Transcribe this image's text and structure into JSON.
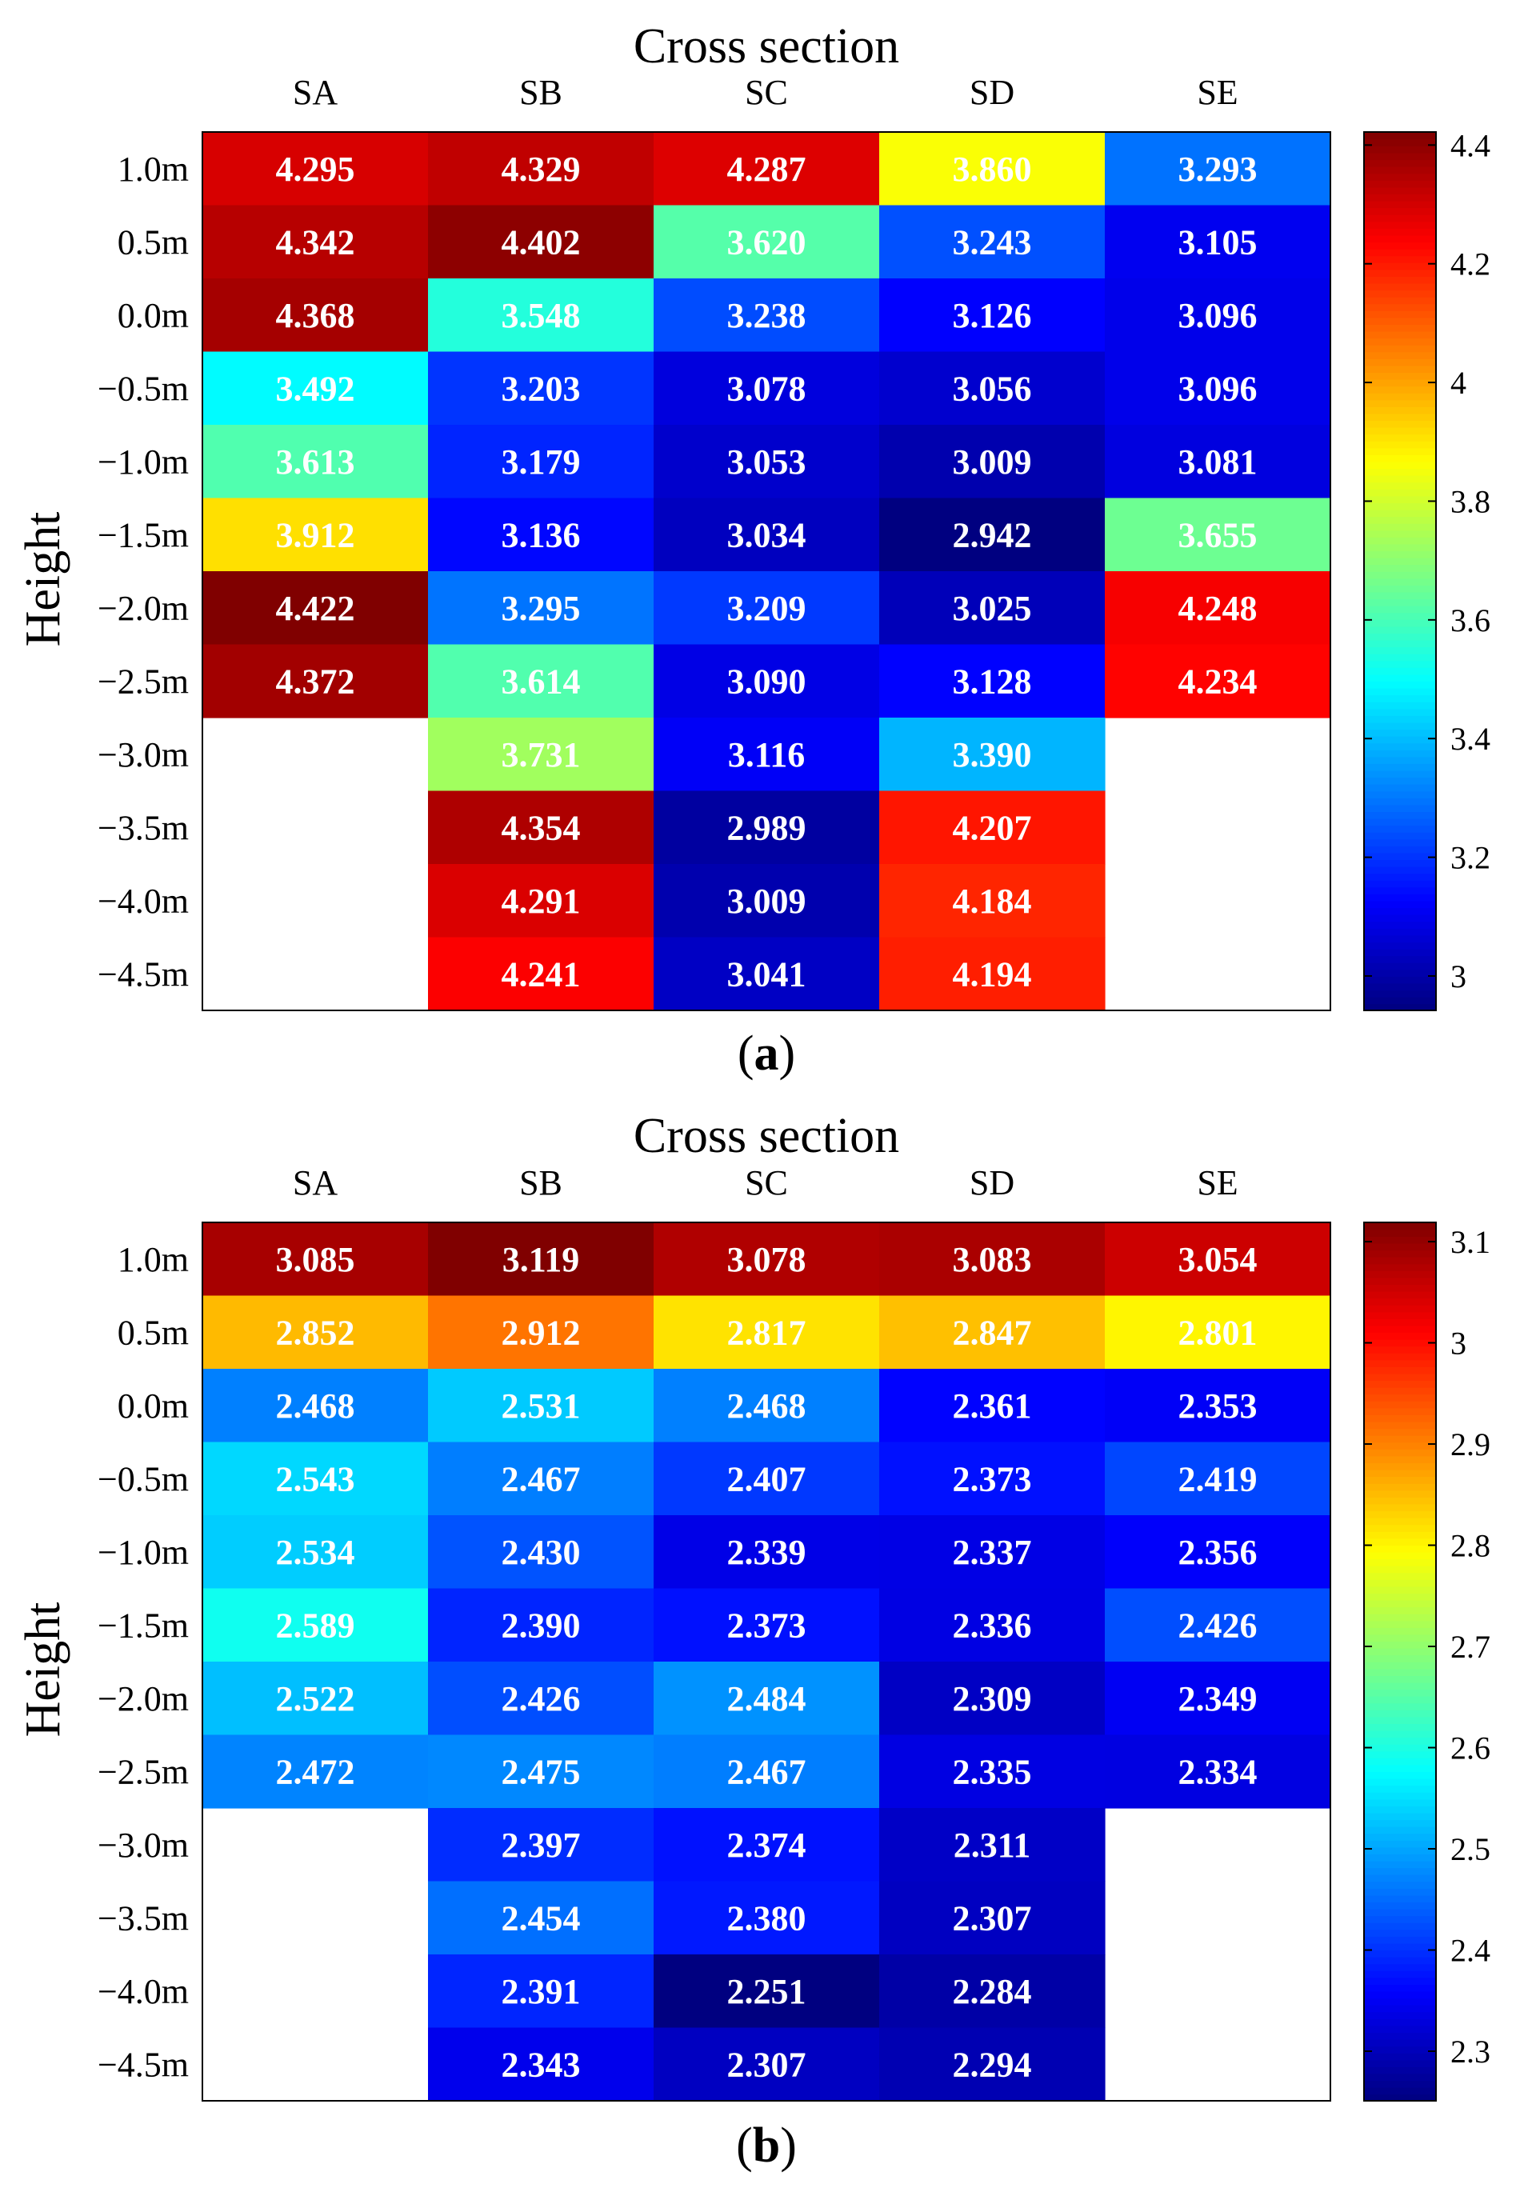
{
  "chart_data": [
    {
      "type": "heatmap",
      "title": "Cross section",
      "ylabel": "Height",
      "caption": "(a)",
      "columns": [
        "SA",
        "SB",
        "SC",
        "SD",
        "SE"
      ],
      "rows": [
        "1.0m",
        "0.5m",
        "0.0m",
        "−0.5m",
        "−1.0m",
        "−1.5m",
        "−2.0m",
        "−2.5m",
        "−3.0m",
        "−3.5m",
        "−4.0m",
        "−4.5m"
      ],
      "values": [
        [
          4.295,
          4.329,
          4.287,
          3.86,
          3.293
        ],
        [
          4.342,
          4.402,
          3.62,
          3.243,
          3.105
        ],
        [
          4.368,
          3.548,
          3.238,
          3.126,
          3.096
        ],
        [
          3.492,
          3.203,
          3.078,
          3.056,
          3.096
        ],
        [
          3.613,
          3.179,
          3.053,
          3.009,
          3.081
        ],
        [
          3.912,
          3.136,
          3.034,
          2.942,
          3.655
        ],
        [
          4.422,
          3.295,
          3.209,
          3.025,
          4.248
        ],
        [
          4.372,
          3.614,
          3.09,
          3.128,
          4.234
        ],
        [
          null,
          3.731,
          3.116,
          3.39,
          null
        ],
        [
          null,
          4.354,
          2.989,
          4.207,
          null
        ],
        [
          null,
          4.291,
          3.009,
          4.184,
          null
        ],
        [
          null,
          4.241,
          3.041,
          4.194,
          null
        ]
      ],
      "labels": [
        [
          "4.295",
          "4.329",
          "4.287",
          "3.860",
          "3.293"
        ],
        [
          "4.342",
          "4.402",
          "3.620",
          "3.243",
          "3.105"
        ],
        [
          "4.368",
          "3.548",
          "3.238",
          "3.126",
          "3.096"
        ],
        [
          "3.492",
          "3.203",
          "3.078",
          "3.056",
          "3.096"
        ],
        [
          "3.613",
          "3.179",
          "3.053",
          "3.009",
          "3.081"
        ],
        [
          "3.912",
          "3.136",
          "3.034",
          "2.942",
          "3.655"
        ],
        [
          "4.422",
          "3.295",
          "3.209",
          "3.025",
          "4.248"
        ],
        [
          "4.372",
          "3.614",
          "3.090",
          "3.128",
          "4.234"
        ],
        [
          "",
          "3.731",
          "3.116",
          "3.390",
          ""
        ],
        [
          "",
          "4.354",
          "2.989",
          "4.207",
          ""
        ],
        [
          "",
          "4.291",
          "3.009",
          "4.184",
          ""
        ],
        [
          "",
          "4.241",
          "3.041",
          "4.194",
          ""
        ]
      ],
      "colorbar": {
        "range": [
          2.942,
          4.422
        ],
        "ticks": [
          3,
          3.2,
          3.4,
          3.6,
          3.8,
          4,
          4.2,
          4.4
        ],
        "tick_labels": [
          "3",
          "3.2",
          "3.4",
          "3.6",
          "3.8",
          "4",
          "4.2",
          "4.4"
        ],
        "colormap": "jet"
      }
    },
    {
      "type": "heatmap",
      "title": "Cross section",
      "ylabel": "Height",
      "caption": "(b)",
      "columns": [
        "SA",
        "SB",
        "SC",
        "SD",
        "SE"
      ],
      "rows": [
        "1.0m",
        "0.5m",
        "0.0m",
        "−0.5m",
        "−1.0m",
        "−1.5m",
        "−2.0m",
        "−2.5m",
        "−3.0m",
        "−3.5m",
        "−4.0m",
        "−4.5m"
      ],
      "values": [
        [
          3.085,
          3.119,
          3.078,
          3.083,
          3.054
        ],
        [
          2.852,
          2.912,
          2.817,
          2.847,
          2.801
        ],
        [
          2.468,
          2.531,
          2.468,
          2.361,
          2.353
        ],
        [
          2.543,
          2.467,
          2.407,
          2.373,
          2.419
        ],
        [
          2.534,
          2.43,
          2.339,
          2.337,
          2.356
        ],
        [
          2.589,
          2.39,
          2.373,
          2.336,
          2.426
        ],
        [
          2.522,
          2.426,
          2.484,
          2.309,
          2.349
        ],
        [
          2.472,
          2.475,
          2.467,
          2.335,
          2.334
        ],
        [
          null,
          2.397,
          2.374,
          2.311,
          null
        ],
        [
          null,
          2.454,
          2.38,
          2.307,
          null
        ],
        [
          null,
          2.391,
          2.251,
          2.284,
          null
        ],
        [
          null,
          2.343,
          2.307,
          2.294,
          null
        ]
      ],
      "labels": [
        [
          "3.085",
          "3.119",
          "3.078",
          "3.083",
          "3.054"
        ],
        [
          "2.852",
          "2.912",
          "2.817",
          "2.847",
          "2.801"
        ],
        [
          "2.468",
          "2.531",
          "2.468",
          "2.361",
          "2.353"
        ],
        [
          "2.543",
          "2.467",
          "2.407",
          "2.373",
          "2.419"
        ],
        [
          "2.534",
          "2.430",
          "2.339",
          "2.337",
          "2.356"
        ],
        [
          "2.589",
          "2.390",
          "2.373",
          "2.336",
          "2.426"
        ],
        [
          "2.522",
          "2.426",
          "2.484",
          "2.309",
          "2.349"
        ],
        [
          "2.472",
          "2.475",
          "2.467",
          "2.335",
          "2.334"
        ],
        [
          "",
          "2.397",
          "2.374",
          "2.311",
          ""
        ],
        [
          "",
          "2.454",
          "2.380",
          "2.307",
          ""
        ],
        [
          "",
          "2.391",
          "2.251",
          "2.284",
          ""
        ],
        [
          "",
          "2.343",
          "2.307",
          "2.294",
          ""
        ]
      ],
      "colorbar": {
        "range": [
          2.251,
          3.119
        ],
        "ticks": [
          2.3,
          2.4,
          2.5,
          2.6,
          2.7,
          2.8,
          2.9,
          3,
          3.1
        ],
        "tick_labels": [
          "2.3",
          "2.4",
          "2.5",
          "2.6",
          "2.7",
          "2.8",
          "2.9",
          "3",
          "3.1"
        ],
        "colormap": "jet"
      }
    }
  ]
}
